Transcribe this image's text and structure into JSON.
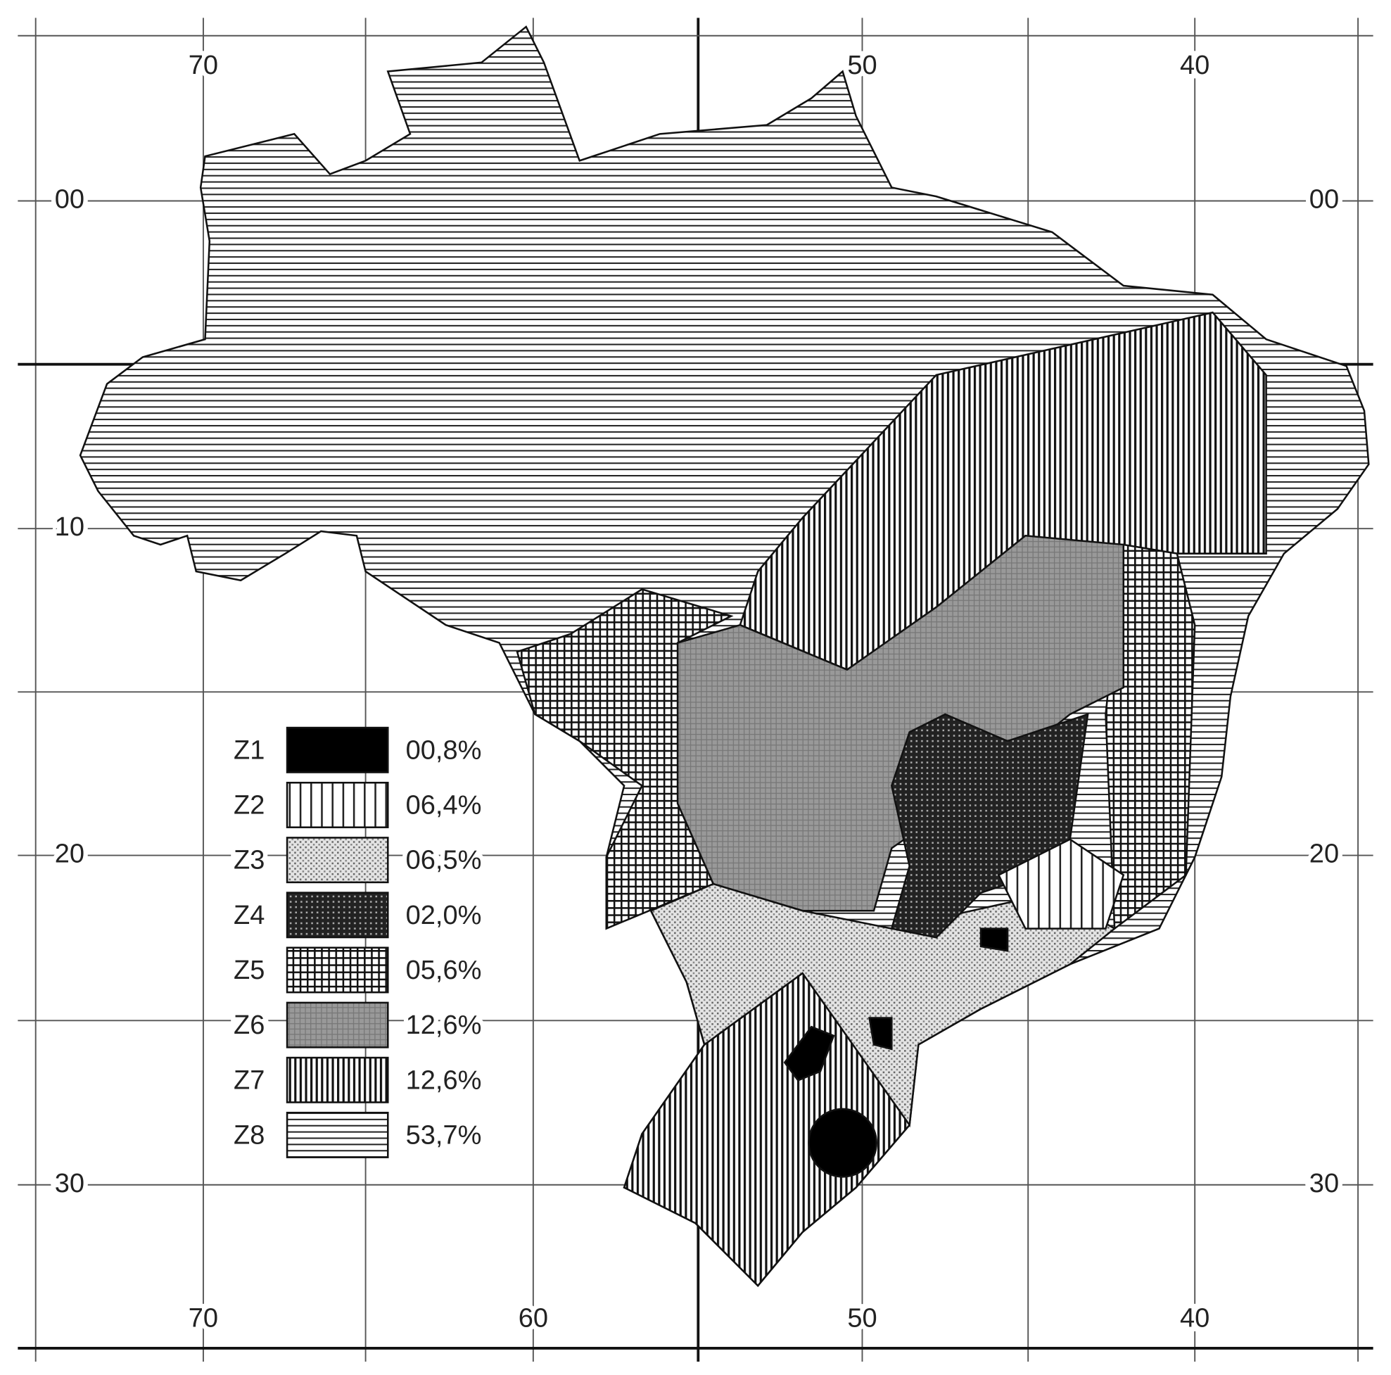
{
  "grid_labels": {
    "top": [
      "70",
      "50",
      "40"
    ],
    "bottom": [
      "70",
      "60",
      "50",
      "40"
    ],
    "left": [
      "00",
      "10",
      "20",
      "30"
    ],
    "right": [
      "00",
      "20",
      "30"
    ]
  },
  "legend": [
    {
      "zone": "Z1",
      "share": "00,8%"
    },
    {
      "zone": "Z2",
      "share": "06,4%"
    },
    {
      "zone": "Z3",
      "share": "06,5%"
    },
    {
      "zone": "Z4",
      "share": "02,0%"
    },
    {
      "zone": "Z5",
      "share": "05,6%"
    },
    {
      "zone": "Z6",
      "share": "12,6%"
    },
    {
      "zone": "Z7",
      "share": "12,6%"
    },
    {
      "zone": "Z8",
      "share": "53,7%"
    }
  ]
}
